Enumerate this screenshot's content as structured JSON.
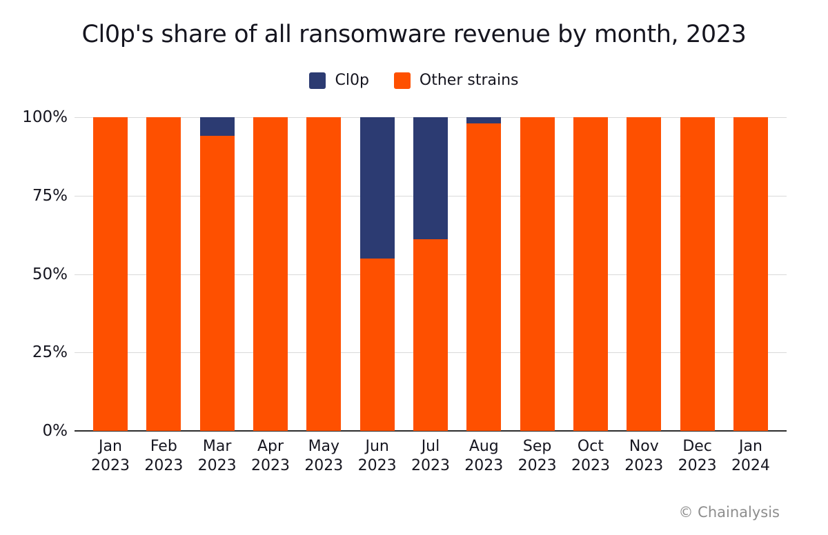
{
  "page": {
    "title": "Cl0p's share of all ransomware revenue by month, 2023",
    "credit": "© Chainalysis"
  },
  "legend": {
    "items": [
      {
        "label": "Cl0p",
        "color": "#2C3B72"
      },
      {
        "label": "Other strains",
        "color": "#FE5000"
      }
    ]
  },
  "colors": {
    "clop_blue": "#2C3B72",
    "other_orange": "#FE5000",
    "gridline": "#D9D9D9",
    "axis_line": "#2B2B2B",
    "text_dark": "#15151F",
    "credit_gray": "#8D8D8D",
    "background": "#FFFFFF"
  },
  "chart_data": {
    "type": "bar",
    "stacked": true,
    "orientation": "vertical",
    "title": "Cl0p's share of all ransomware revenue by month, 2023",
    "unit": "%",
    "categories": [
      "Jan 2023",
      "Feb 2023",
      "Mar 2023",
      "Apr 2023",
      "May 2023",
      "Jun 2023",
      "Jul 2023",
      "Aug 2023",
      "Sep 2023",
      "Oct 2023",
      "Nov 2023",
      "Dec 2023",
      "Jan 2024"
    ],
    "category_lines": [
      [
        "Jan",
        "2023"
      ],
      [
        "Feb",
        "2023"
      ],
      [
        "Mar",
        "2023"
      ],
      [
        "Apr",
        "2023"
      ],
      [
        "May",
        "2023"
      ],
      [
        "Jun",
        "2023"
      ],
      [
        "Jul",
        "2023"
      ],
      [
        "Aug",
        "2023"
      ],
      [
        "Sep",
        "2023"
      ],
      [
        "Oct",
        "2023"
      ],
      [
        "Nov",
        "2023"
      ],
      [
        "Dec",
        "2023"
      ],
      [
        "Jan",
        "2024"
      ]
    ],
    "series": [
      {
        "name": "Cl0p",
        "color": "#2C3B72",
        "values": [
          0,
          0,
          6,
          0,
          0,
          45,
          39,
          2,
          0,
          0,
          0,
          0,
          0
        ]
      },
      {
        "name": "Other strains",
        "color": "#FE5000",
        "values": [
          100,
          100,
          94,
          100,
          100,
          55,
          61,
          98,
          100,
          100,
          100,
          100,
          100
        ]
      }
    ],
    "y_ticks": [
      "100%",
      "75%",
      "50%",
      "25%",
      "0%"
    ],
    "y_tick_values": [
      100,
      75,
      50,
      25,
      0
    ],
    "ylim": [
      0,
      100
    ],
    "xlabel": "",
    "ylabel": "",
    "grid": true,
    "legend_position": "top-center"
  }
}
